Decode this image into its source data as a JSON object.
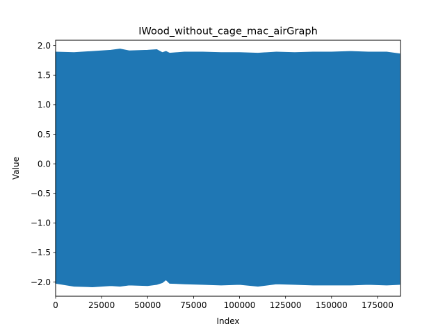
{
  "chart_data": {
    "type": "line",
    "title": "IWood_without_cage_mac_airGraph",
    "xlabel": "Index",
    "ylabel": "Value",
    "xlim": [
      0,
      187500
    ],
    "ylim": [
      -2.24,
      2.09
    ],
    "grid": false,
    "legend": "none",
    "xticks": [
      0,
      25000,
      50000,
      75000,
      100000,
      125000,
      150000,
      175000
    ],
    "xtick_labels": [
      "0",
      "25000",
      "50000",
      "75000",
      "100000",
      "125000",
      "150000",
      "175000"
    ],
    "yticks": [
      -2.0,
      -1.5,
      -1.0,
      -0.5,
      0.0,
      0.5,
      1.0,
      1.5,
      2.0
    ],
    "ytick_labels": [
      "−2.0",
      "−1.5",
      "−1.0",
      "−0.5",
      "0.0",
      "0.5",
      "1.0",
      "1.5",
      "2.0"
    ],
    "series": [
      {
        "color": "#1f77b4",
        "x": [
          0,
          10000,
          20000,
          30000,
          35000,
          40000,
          50000,
          55000,
          58000,
          60000,
          62000,
          70000,
          80000,
          90000,
          100000,
          110000,
          120000,
          130000,
          140000,
          150000,
          160000,
          170000,
          180000,
          187000
        ],
        "upper": [
          1.89,
          1.88,
          1.9,
          1.92,
          1.94,
          1.91,
          1.92,
          1.93,
          1.88,
          1.9,
          1.87,
          1.89,
          1.89,
          1.88,
          1.88,
          1.87,
          1.89,
          1.88,
          1.89,
          1.89,
          1.9,
          1.89,
          1.89,
          1.86
        ],
        "lower": [
          -2.02,
          -2.07,
          -2.08,
          -2.06,
          -2.07,
          -2.05,
          -2.06,
          -2.04,
          -2.01,
          -1.96,
          -2.02,
          -2.03,
          -2.04,
          -2.05,
          -2.04,
          -2.07,
          -2.03,
          -2.04,
          -2.05,
          -2.05,
          -2.05,
          -2.04,
          -2.05,
          -2.04
        ]
      }
    ]
  }
}
